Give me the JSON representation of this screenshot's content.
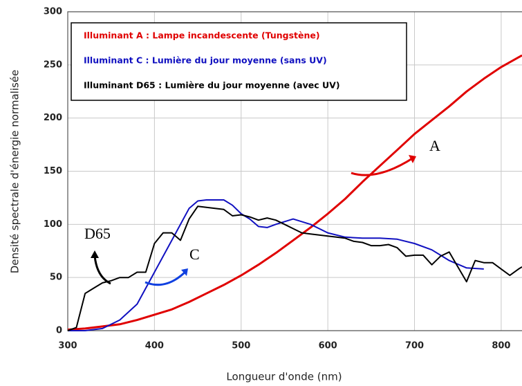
{
  "chart_data": {
    "type": "line",
    "xlabel": "Longueur d'onde (nm)",
    "ylabel": "Densité spectrale d'énergie normalisée",
    "xlim": [
      300,
      824
    ],
    "ylim": [
      0,
      300
    ],
    "xticks": [
      300,
      400,
      500,
      600,
      700,
      800
    ],
    "yticks": [
      0,
      50,
      100,
      150,
      200,
      250,
      300
    ],
    "grid": true,
    "legend": "upper left",
    "series": [
      {
        "name": "Illuminant A : Lampe incandescente (Tungstène)",
        "color": "#e00000",
        "x": [
          300,
          320,
          340,
          360,
          380,
          400,
          420,
          440,
          460,
          480,
          500,
          520,
          540,
          560,
          580,
          600,
          620,
          640,
          660,
          680,
          700,
          720,
          740,
          760,
          780,
          800,
          824
        ],
        "values": [
          1,
          2,
          4,
          6,
          10,
          15,
          20,
          27,
          35,
          43,
          52,
          62,
          73,
          85,
          97,
          110,
          124,
          140,
          155,
          170,
          185,
          198,
          211,
          225,
          237,
          248,
          259
        ]
      },
      {
        "name": "Illuminant C : Lumière du jour moyenne (sans UV)",
        "color": "#1010c0",
        "x": [
          300,
          320,
          340,
          360,
          380,
          400,
          420,
          440,
          450,
          460,
          480,
          490,
          500,
          510,
          520,
          530,
          540,
          560,
          580,
          600,
          620,
          640,
          660,
          680,
          700,
          720,
          740,
          760,
          780
        ],
        "values": [
          0,
          0,
          2,
          10,
          25,
          55,
          85,
          115,
          122,
          123,
          123,
          118,
          110,
          105,
          98,
          97,
          100,
          105,
          100,
          92,
          88,
          87,
          87,
          86,
          82,
          76,
          66,
          59,
          58
        ]
      },
      {
        "name": "Illuminant  D65 : Lumière du jour moyenne (avec UV)",
        "color": "#000000",
        "x": [
          300,
          310,
          320,
          330,
          340,
          350,
          360,
          370,
          380,
          390,
          400,
          410,
          420,
          430,
          440,
          450,
          460,
          470,
          480,
          490,
          500,
          510,
          520,
          530,
          540,
          550,
          560,
          570,
          580,
          590,
          600,
          610,
          620,
          630,
          640,
          650,
          660,
          670,
          680,
          690,
          700,
          710,
          720,
          730,
          740,
          750,
          760,
          770,
          780,
          790,
          800,
          810,
          820,
          824
        ],
        "values": [
          0,
          3,
          35,
          40,
          45,
          47,
          50,
          50,
          55,
          55,
          82,
          92,
          92,
          85,
          105,
          117,
          116,
          115,
          114,
          108,
          109,
          107,
          104,
          106,
          104,
          100,
          96,
          92,
          91,
          90,
          89,
          88,
          87,
          84,
          83,
          80,
          80,
          81,
          78,
          70,
          71,
          71,
          62,
          70,
          74,
          60,
          46,
          66,
          64,
          64,
          58,
          52,
          58,
          60
        ]
      }
    ],
    "annotations": [
      "A",
      "C",
      "D65"
    ]
  }
}
